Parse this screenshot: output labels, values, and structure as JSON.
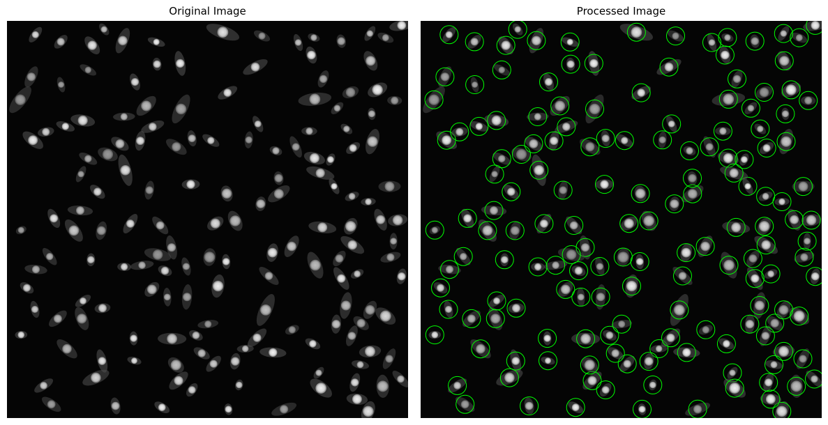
{
  "figure": {
    "left_title": "Original Image",
    "right_title": "Processed Image"
  },
  "colors": {
    "background": "#050505",
    "cell_body": "#4a4a4a",
    "nucleus": "#d8d8d8",
    "detection_circle": "#00ff00"
  },
  "detected_cell_count": 160
}
